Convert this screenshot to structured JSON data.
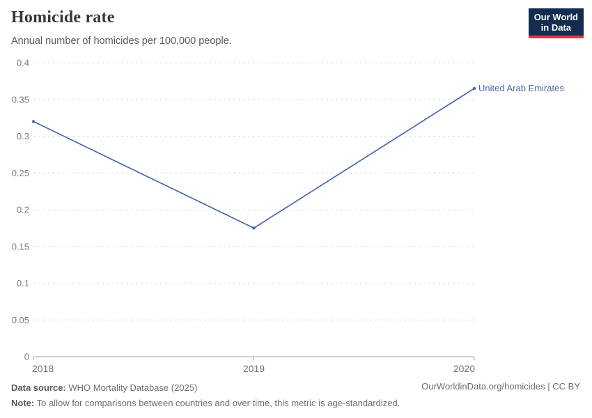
{
  "header": {
    "title": "Homicide rate",
    "subtitle": "Annual number of homicides per 100,000 people.",
    "logo": {
      "line1": "Our World",
      "line2": "in Data"
    }
  },
  "chart_data": {
    "type": "line",
    "title": "Homicide rate",
    "subtitle": "Annual number of homicides per 100,000 people.",
    "x": [
      2018,
      2019,
      2020
    ],
    "x_tick_labels": [
      "2018",
      "2019",
      "2020"
    ],
    "series": [
      {
        "name": "United Arab Emirates",
        "values": [
          0.32,
          0.175,
          0.365
        ]
      }
    ],
    "ylim": [
      0,
      0.4
    ],
    "y_ticks": [
      0,
      0.05,
      0.1,
      0.15,
      0.2,
      0.25,
      0.3,
      0.35,
      0.4
    ],
    "y_tick_labels": [
      "0",
      "0.05",
      "0.1",
      "0.15",
      "0.2",
      "0.25",
      "0.3",
      "0.35",
      "0.4"
    ],
    "xlabel": "",
    "ylabel": "",
    "grid": true,
    "legend_position": "end-of-line label"
  },
  "colors": {
    "line": "#4a67a8",
    "grid": "#dcdcdc",
    "axis": "#a6a6a6",
    "logo_bg": "#132c4f",
    "logo_red": "#e0383e"
  },
  "footer": {
    "data_source_label": "Data source:",
    "data_source_value": "WHO Mortality Database (2025)",
    "note_label": "Note:",
    "note_text": "To allow for comparisons between countries and over time, this metric is age-standardized.",
    "attribution": "OurWorldinData.org/homicides | CC BY"
  }
}
